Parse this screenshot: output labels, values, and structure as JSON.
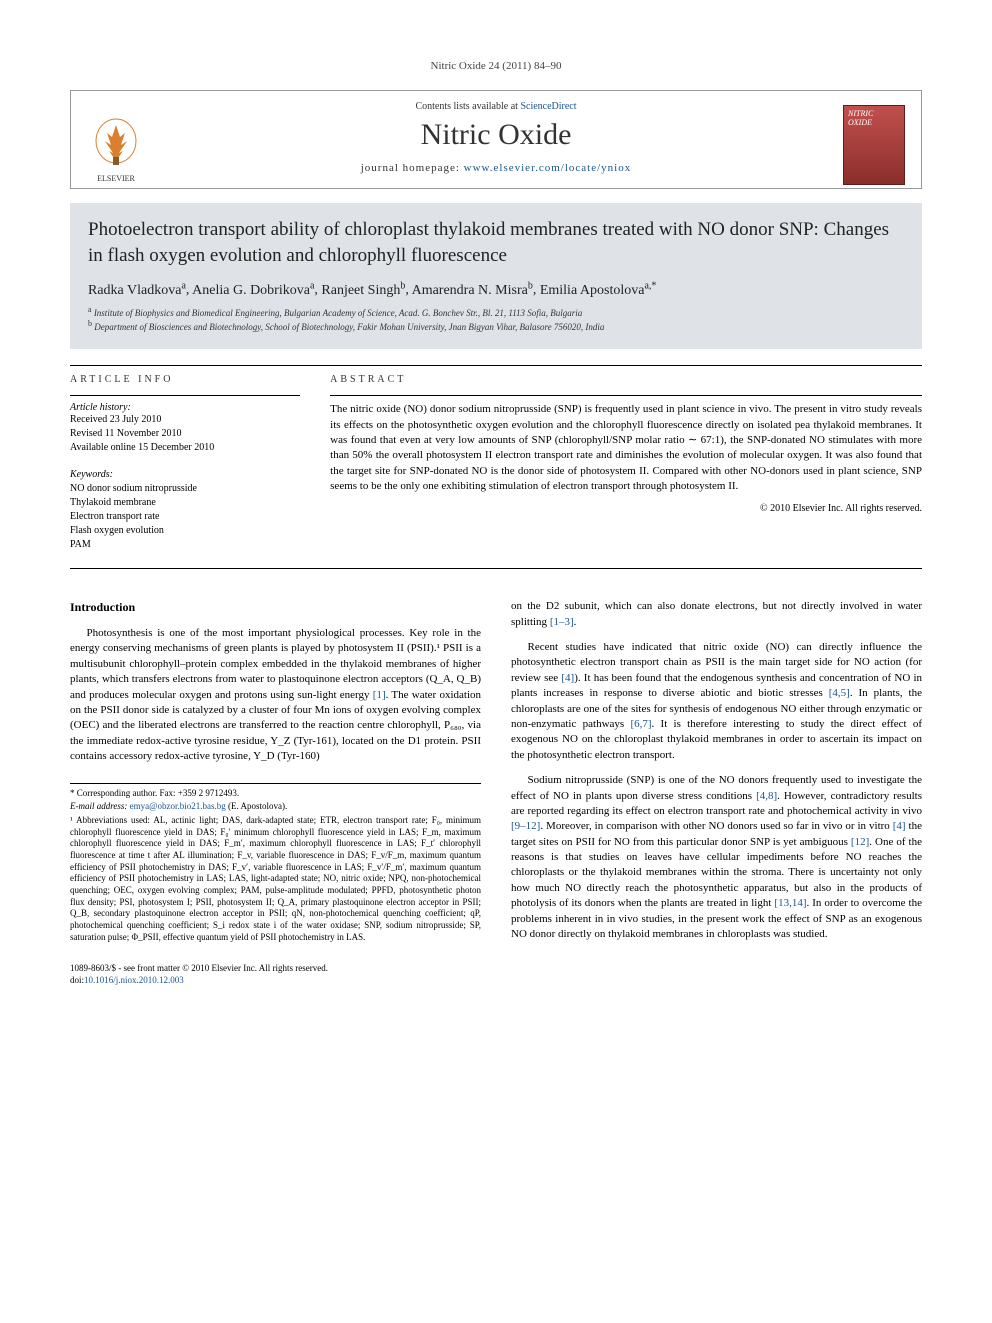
{
  "runningHead": "Nitric Oxide 24 (2011) 84–90",
  "headerTop": {
    "prefix": "Contents lists available at ",
    "linkText": "ScienceDirect"
  },
  "journalTitle": "Nitric Oxide",
  "homepage": {
    "prefix": "journal homepage: ",
    "url": "www.elsevier.com/locate/yniox"
  },
  "publisherLogo": {
    "name": "ELSEVIER",
    "treeColor": "#d97f2e",
    "textColor": "#333"
  },
  "coverThumb": {
    "line1": "NITRIC",
    "line2": "OXIDE"
  },
  "articleTitle": "Photoelectron transport ability of chloroplast thylakoid membranes treated with NO donor SNP: Changes in flash oxygen evolution and chlorophyll fluorescence",
  "authors": [
    {
      "name": "Radka Vladkova",
      "affil": "a"
    },
    {
      "name": "Anelia G. Dobrikova",
      "affil": "a"
    },
    {
      "name": "Ranjeet Singh",
      "affil": "b"
    },
    {
      "name": "Amarendra N. Misra",
      "affil": "b"
    },
    {
      "name": "Emilia Apostolova",
      "affil": "a,*"
    }
  ],
  "affiliations": [
    {
      "sup": "a",
      "text": "Institute of Biophysics and Biomedical Engineering, Bulgarian Academy of Science, Acad. G. Bonchev Str., Bl. 21, 1113 Sofia, Bulgaria"
    },
    {
      "sup": "b",
      "text": "Department of Biosciences and Biotechnology, School of Biotechnology, Fakir Mohan University, Jnan Bigyan Vihar, Balasore 756020, India"
    }
  ],
  "labels": {
    "articleInfo": "ARTICLE INFO",
    "abstract": "ABSTRACT",
    "historyHead": "Article history:",
    "keywordsHead": "Keywords:"
  },
  "history": [
    "Received 23 July 2010",
    "Revised 11 November 2010",
    "Available online 15 December 2010"
  ],
  "keywords": [
    "NO donor sodium nitroprusside",
    "Thylakoid membrane",
    "Electron transport rate",
    "Flash oxygen evolution",
    "PAM"
  ],
  "abstract": "The nitric oxide (NO) donor sodium nitroprusside (SNP) is frequently used in plant science in vivo. The present in vitro study reveals its effects on the photosynthetic oxygen evolution and the chlorophyll fluorescence directly on isolated pea thylakoid membranes. It was found that even at very low amounts of SNP (chlorophyll/SNP molar ratio ∼ 67:1), the SNP-donated NO stimulates with more than 50% the overall photosystem II electron transport rate and diminishes the evolution of molecular oxygen. It was also found that the target site for SNP-donated NO is the donor side of photosystem II. Compared with other NO-donors used in plant science, SNP seems to be the only one exhibiting stimulation of electron transport through photosystem II.",
  "copyright": "© 2010 Elsevier Inc. All rights reserved.",
  "intro": {
    "heading": "Introduction",
    "p1": "Photosynthesis is one of the most important physiological processes. Key role in the energy conserving mechanisms of green plants is played by photosystem II (PSII).¹ PSII is a multisubunit chlorophyll–protein complex embedded in the thylakoid membranes of higher plants, which transfers electrons from water to plastoquinone electron acceptors (Q_A, Q_B) and produces molecular oxygen and protons using sun-light energy [1]. The water oxidation on the PSII donor side is catalyzed by a cluster of four Mn ions of oxygen evolving complex (OEC) and the liberated electrons are transferred to the reaction centre chlorophyll, P₆₈₀, via the immediate redox-active tyrosine residue, Y_Z (Tyr-161), located on the D1 protein. PSII contains accessory redox-active tyrosine, Y_D (Tyr-160)",
    "p2top": "on the D2 subunit, which can also donate electrons, but not directly involved in water splitting [1–3].",
    "p3": "Recent studies have indicated that nitric oxide (NO) can directly influence the photosynthetic electron transport chain as PSII is the main target side for NO action (for review see [4]). It has been found that the endogenous synthesis and concentration of NO in plants increases in response to diverse abiotic and biotic stresses [4,5]. In plants, the chloroplasts are one of the sites for synthesis of endogenous NO either through enzymatic or non-enzymatic pathways [6,7]. It is therefore interesting to study the direct effect of exogenous NO on the chloroplast thylakoid membranes in order to ascertain its impact on the photosynthetic electron transport.",
    "p4": "Sodium nitroprusside (SNP) is one of the NO donors frequently used to investigate the effect of NO in plants upon diverse stress conditions [4,8]. However, contradictory results are reported regarding its effect on electron transport rate and photochemical activity in vivo [9–12]. Moreover, in comparison with other NO donors used so far in vivo or in vitro [4] the target sites on PSII for NO from this particular donor SNP is yet ambiguous [12]. One of the reasons is that studies on leaves have cellular impediments before NO reaches the chloroplasts or the thylakoid membranes within the stroma. There is uncertainty not only how much NO directly reach the photosynthetic apparatus, but also in the products of photolysis of its donors when the plants are treated in light [13,14]. In order to overcome the problems inherent in in vivo studies, in the present work the effect of SNP as an exogenous NO donor directly on thylakoid membranes in chloroplasts was studied."
  },
  "footnotes": {
    "corr": "* Corresponding author. Fax: +359 2 9712493.",
    "emailLabel": "E-mail address:",
    "email": "emya@obzor.bio21.bas.bg",
    "emailSuffix": "(E. Apostolova).",
    "abbrev": "¹ Abbreviations used: AL, actinic light; DAS, dark-adapted state; ETR, electron transport rate; F₀, minimum chlorophyll fluorescence yield in DAS; F₀′ minimum chlorophyll fluorescence yield in LAS; F_m, maximum chlorophyll fluorescence yield in DAS; F_m′, maximum chlorophyll fluorescence in LAS; F_t′ chlorophyll fluorescence at time t after AL illumination; F_v, variable fluorescence in DAS; F_v/F_m, maximum quantum efficiency of PSII photochemistry in DAS; F_v′, variable fluorescence in LAS; F_v′/F_m′, maximum quantum efficiency of PSII photochemistry in LAS; LAS, light-adapted state; NO, nitric oxide; NPQ, non-photochemical quenching; OEC, oxygen evolving complex; PAM, pulse-amplitude modulated; PPFD, photosynthetic photon flux density; PSI, photosystem I; PSII, photosystem II; Q_A, primary plastoquinone electron acceptor in PSII; Q_B, secondary plastoquinone electron acceptor in PSII; qN, non-photochemical quenching coefficient; qP, photochemical quenching coefficient; S_i redox state i of the water oxidase; SNP, sodium nitroprusside; SP, saturation pulse; Φ_PSII, effective quantum yield of PSII photochemistry in LAS."
  },
  "bottom": {
    "issn": "1089-8603/$ - see front matter © 2010 Elsevier Inc. All rights reserved.",
    "doiLabel": "doi:",
    "doi": "10.1016/j.niox.2010.12.003"
  },
  "colors": {
    "linkColor": "#1a5490",
    "titleBarBg": "#dfe3e8",
    "coverGradTop": "#c0504d",
    "coverGradBottom": "#8b2e2b"
  }
}
